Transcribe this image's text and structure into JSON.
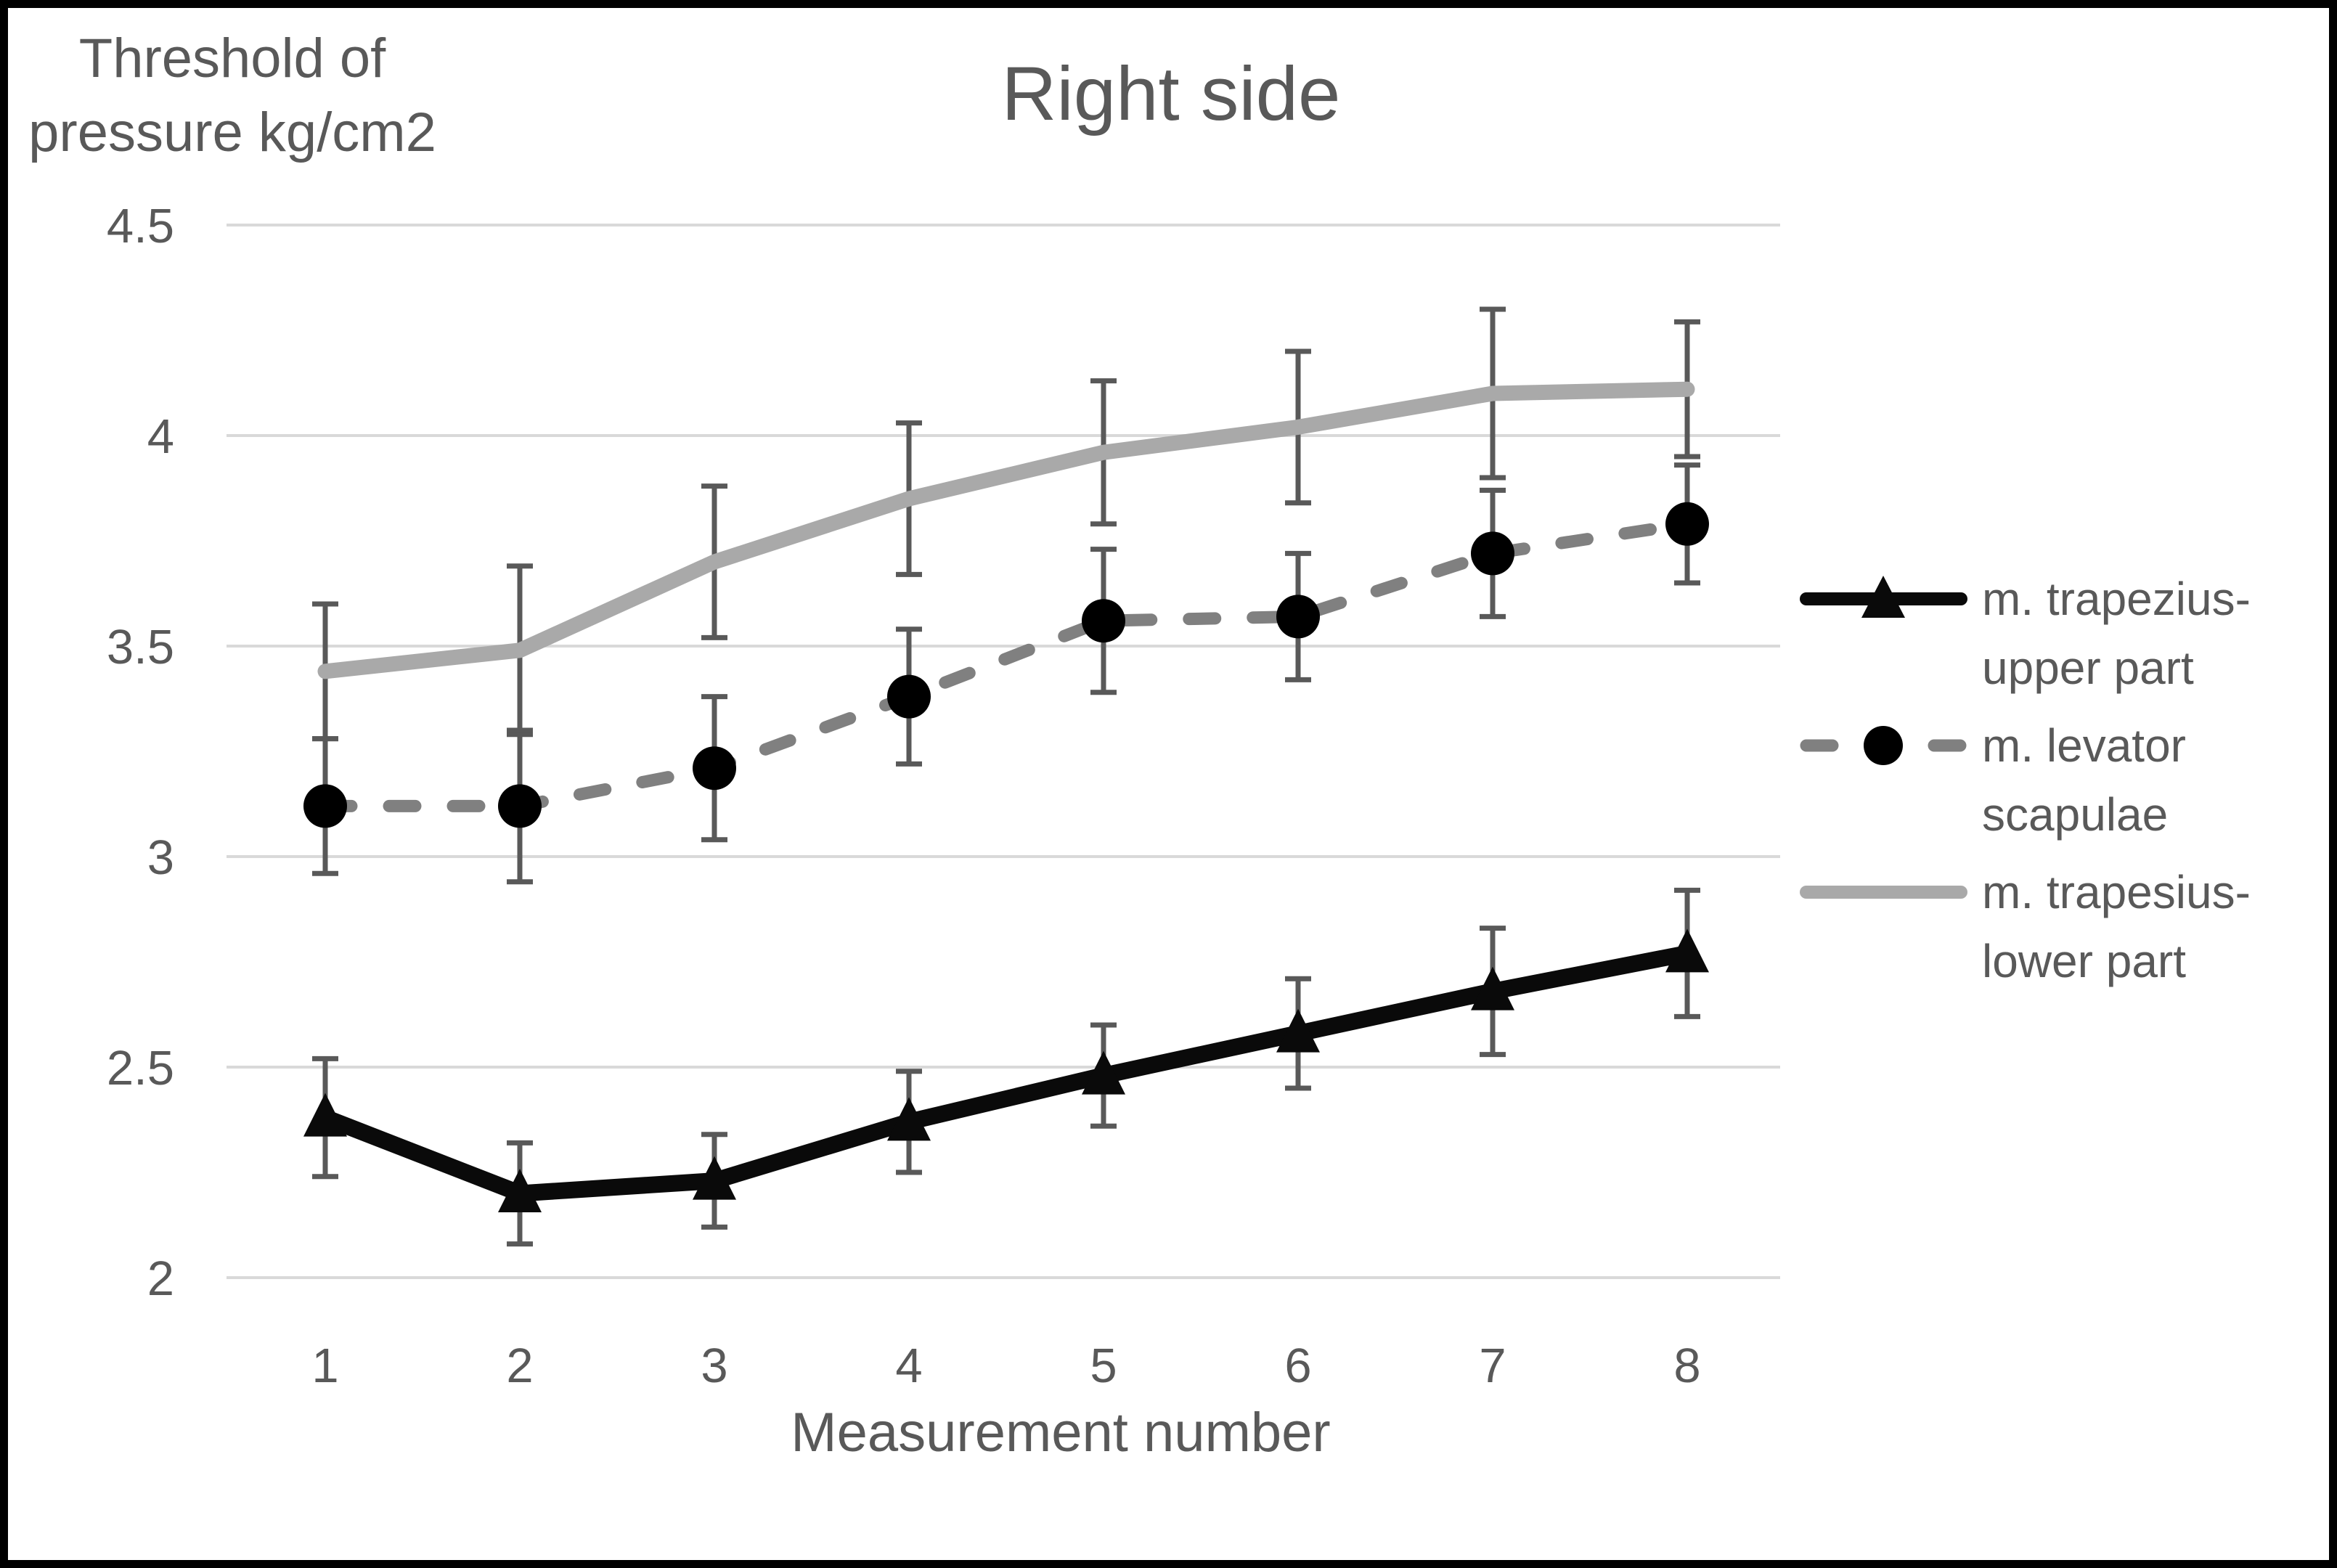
{
  "figure": {
    "title": "Right side",
    "y_axis_title_lines": [
      "Threshold of",
      "pressure kg/cm2"
    ],
    "x_axis_title": "Measurement number"
  },
  "chart_data": {
    "type": "line",
    "title": "Right side",
    "ylabel": "Threshold of pressure kg/cm2",
    "xlabel": "Measurement number",
    "x": [
      1,
      2,
      3,
      4,
      5,
      6,
      7,
      8
    ],
    "xtick_labels": [
      "1",
      "2",
      "3",
      "4",
      "5",
      "6",
      "7",
      "8"
    ],
    "ylim": [
      2.0,
      4.5
    ],
    "yticks": [
      4.5,
      4.0,
      3.5,
      3.0,
      2.5,
      2.0
    ],
    "ytick_labels": [
      "4.5",
      "4",
      "3.5",
      "3",
      "2.5",
      "2"
    ],
    "grid": true,
    "error_bars": true,
    "legend_position": "right",
    "colors": {
      "text": "#595959",
      "gridline": "#d9d9d9",
      "error_bar": "#595959",
      "frame": "#000000",
      "background": "#ffffff"
    },
    "series": [
      {
        "name": "m. trapezius-upper part",
        "label_lines": [
          "m. trapezius-",
          "upper part"
        ],
        "line_style": "solid",
        "marker": "triangle",
        "color": "#0a0a0a",
        "marker_color": "#0a0a0a",
        "values": [
          2.38,
          2.2,
          2.23,
          2.37,
          2.48,
          2.58,
          2.68,
          2.77
        ],
        "errors": [
          0.14,
          0.12,
          0.11,
          0.12,
          0.12,
          0.13,
          0.15,
          0.15
        ]
      },
      {
        "name": "m. levator scapulae",
        "label_lines": [
          "m. levator",
          "scapulae"
        ],
        "line_style": "dashed",
        "marker": "circle",
        "color": "#808080",
        "marker_color": "#000000",
        "values": [
          3.12,
          3.12,
          3.21,
          3.38,
          3.56,
          3.57,
          3.72,
          3.79
        ],
        "errors": [
          0.16,
          0.18,
          0.17,
          0.16,
          0.17,
          0.15,
          0.15,
          0.14
        ]
      },
      {
        "name": "m. trapesius-lower part",
        "label_lines": [
          "m. trapesius-",
          "lower part"
        ],
        "line_style": "solid",
        "marker": "none",
        "color": "#a9a9a9",
        "marker_color": "#a9a9a9",
        "values": [
          3.44,
          3.49,
          3.7,
          3.85,
          3.96,
          4.02,
          4.1,
          4.11
        ],
        "errors": [
          0.16,
          0.2,
          0.18,
          0.18,
          0.17,
          0.18,
          0.2,
          0.16
        ]
      }
    ]
  }
}
